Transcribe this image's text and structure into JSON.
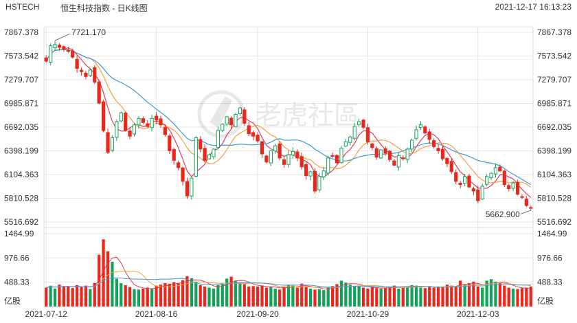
{
  "header": {
    "symbol": "HSTECH",
    "name": "恒生科技指数 - 日K线图",
    "datetime": "2021-12-17 16:13:23"
  },
  "watermark": "老虎社區",
  "colors": {
    "up": "#11a35a",
    "down": "#e8281c",
    "ma5": "#e03a5a",
    "ma10": "#f2a03a",
    "ma20": "#3c9ad6",
    "grid": "#e6e6e6"
  },
  "chart_data": {
    "type": "candlestick",
    "price_axis": {
      "ticks": [
        "7867.378",
        "7573.542",
        "7279.707",
        "6985.871",
        "6692.035",
        "6398.199",
        "6104.363",
        "5810.528",
        "5516.692"
      ],
      "range": [
        5516.692,
        7867.378
      ]
    },
    "volume_axis": {
      "ticks": [
        "1464.99",
        "976.66",
        "488.33"
      ],
      "unit": "亿股",
      "range": [
        0,
        1464.99
      ]
    },
    "x_labels": [
      {
        "label": "2021-07-12",
        "index": 0
      },
      {
        "label": "2021-08-16",
        "index": 25
      },
      {
        "label": "2021-09-20",
        "index": 48
      },
      {
        "label": "2021-10-29",
        "index": 73
      },
      {
        "label": "2021-12-03",
        "index": 98
      }
    ],
    "annotations": {
      "high": {
        "label": "7721.170",
        "value": 7721.17,
        "index": 2
      },
      "low": {
        "label": "5662.900",
        "value": 5662.9,
        "index": 110
      }
    },
    "ma_lines": [
      "MA5",
      "MA10",
      "MA20"
    ],
    "last_close": 5690,
    "close": [
      7510,
      7700,
      7715,
      7680,
      7660,
      7630,
      7560,
      7420,
      7380,
      7320,
      7400,
      7250,
      6990,
      6650,
      6380,
      6560,
      6760,
      6870,
      6650,
      6580,
      6720,
      6800,
      6750,
      6700,
      6800,
      6780,
      6720,
      6600,
      6400,
      6280,
      6190,
      6020,
      5840,
      6060,
      6560,
      6420,
      6280,
      6350,
      6420,
      6650,
      6730,
      6820,
      6720,
      6850,
      6930,
      6740,
      6610,
      6580,
      6520,
      6360,
      6260,
      6400,
      6460,
      6310,
      6230,
      6350,
      6390,
      6310,
      6200,
      6090,
      6140,
      5900,
      6080,
      6150,
      6310,
      6330,
      6250,
      6430,
      6510,
      6570,
      6700,
      6760,
      6690,
      6510,
      6440,
      6320,
      6410,
      6370,
      6290,
      6220,
      6340,
      6300,
      6420,
      6530,
      6660,
      6720,
      6620,
      6540,
      6450,
      6400,
      6300,
      6240,
      6140,
      6020,
      5980,
      6080,
      5950,
      5900,
      5780,
      5960,
      6080,
      6120,
      6190,
      6150,
      5980,
      5930,
      6000,
      5860,
      5830,
      5720,
      5690
    ],
    "volume": [
      380,
      420,
      360,
      440,
      410,
      400,
      370,
      430,
      390,
      420,
      350,
      470,
      1040,
      1350,
      1110,
      900,
      560,
      470,
      430,
      390,
      350,
      340,
      360,
      380,
      360,
      420,
      440,
      470,
      460,
      490,
      460,
      530,
      610,
      570,
      500,
      430,
      400,
      380,
      360,
      430,
      460,
      560,
      600,
      520,
      480,
      450,
      400,
      410,
      400,
      420,
      380,
      390,
      360,
      340,
      400,
      440,
      420,
      380,
      460,
      390,
      360,
      340,
      350,
      330,
      380,
      410,
      450,
      520,
      480,
      440,
      410,
      400,
      380,
      360,
      390,
      370,
      360,
      380,
      400,
      420,
      360,
      380,
      400,
      430,
      420,
      380,
      370,
      410,
      380,
      400,
      380,
      440,
      420,
      390,
      520,
      450,
      470,
      500,
      400,
      380,
      520,
      550,
      500,
      470,
      420,
      380,
      360,
      350,
      370,
      380,
      400
    ]
  }
}
